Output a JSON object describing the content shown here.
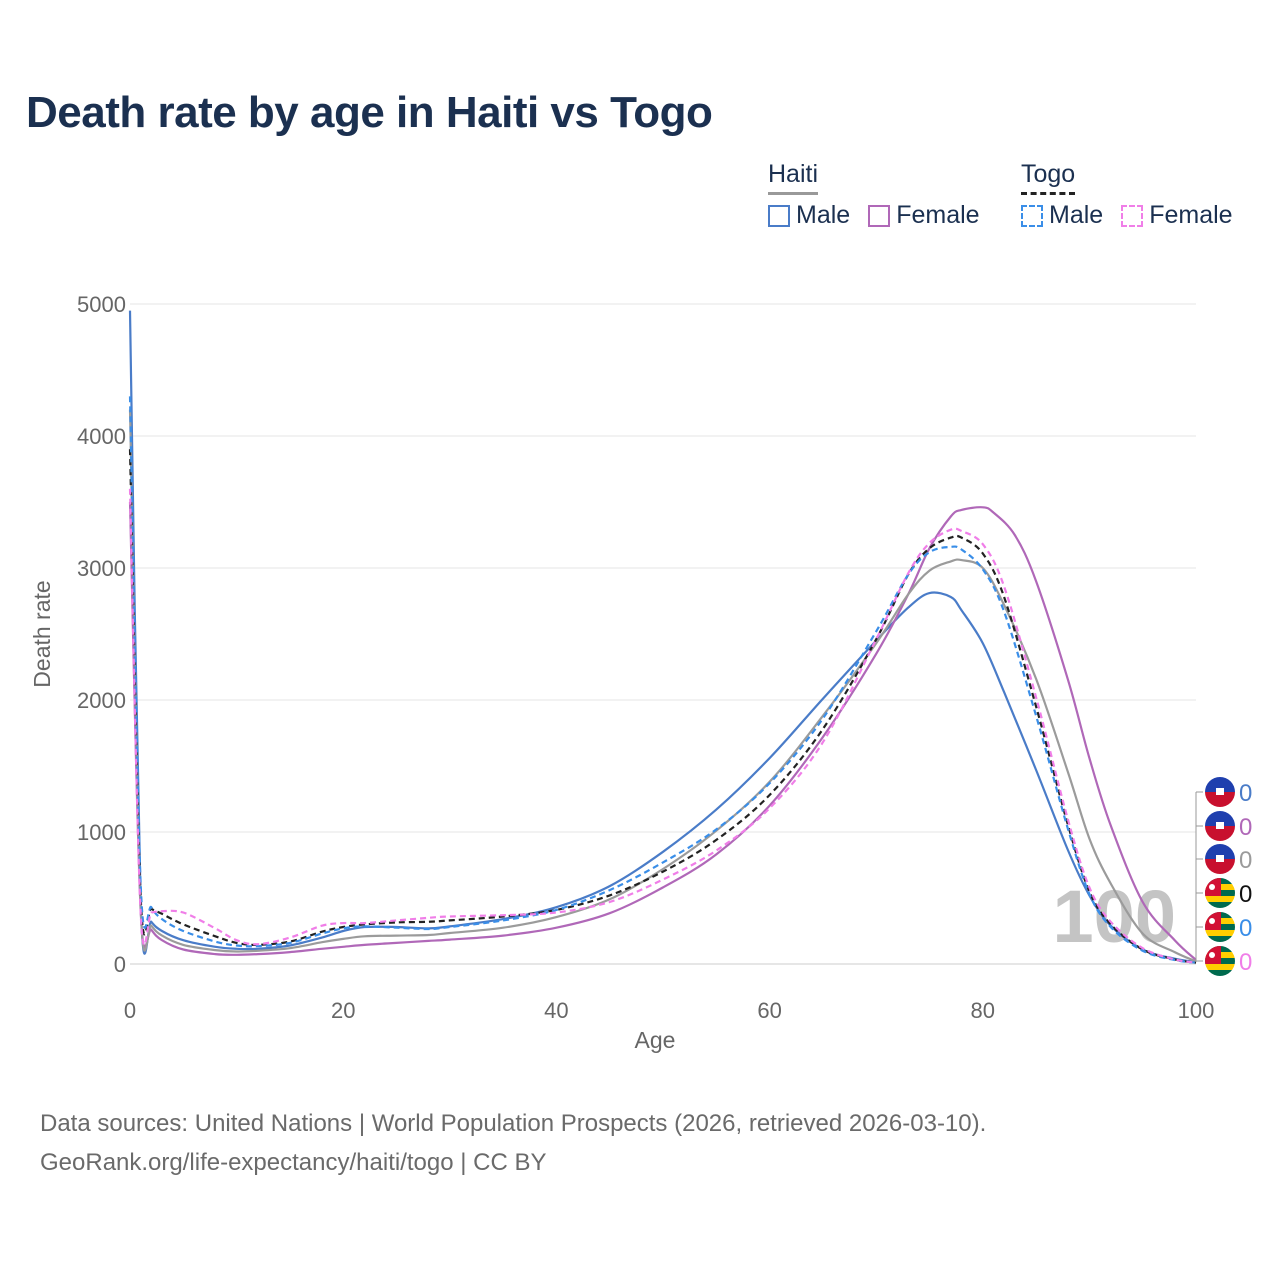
{
  "title": "Death rate by age in Haiti vs Togo",
  "legend": {
    "groups": [
      {
        "name": "Haiti",
        "items": [
          {
            "label": "Male",
            "color": "#4a7cc8",
            "dashed": false
          },
          {
            "label": "Female",
            "color": "#b068b8",
            "dashed": false
          }
        ]
      },
      {
        "name": "Togo",
        "items": [
          {
            "label": "Male",
            "color": "#3a8ee8",
            "dashed": true
          },
          {
            "label": "Female",
            "color": "#f07ee8",
            "dashed": true
          }
        ]
      }
    ]
  },
  "chart_data": {
    "type": "line",
    "xlabel": "Age",
    "ylabel": "Death rate",
    "xlim": [
      0,
      100
    ],
    "ylim": [
      0,
      5000
    ],
    "xticks": [
      0,
      20,
      40,
      60,
      80,
      100
    ],
    "yticks": [
      0,
      1000,
      2000,
      3000,
      4000,
      5000
    ],
    "grid": true,
    "watermark_value": "100",
    "series": [
      {
        "name": "Haiti Male",
        "country": "Haiti",
        "color": "#4a7cc8",
        "dash": false,
        "end_value": "0",
        "x": [
          0,
          1,
          2,
          3,
          5,
          8,
          10,
          12,
          15,
          18,
          20,
          22,
          25,
          28,
          30,
          35,
          40,
          45,
          50,
          55,
          60,
          65,
          70,
          73,
          75,
          77,
          78,
          80,
          82,
          85,
          88,
          90,
          92,
          95,
          98,
          100
        ],
        "y": [
          4950,
          450,
          320,
          250,
          180,
          130,
          115,
          115,
          140,
          200,
          250,
          280,
          280,
          270,
          285,
          340,
          430,
          590,
          850,
          1170,
          1560,
          2010,
          2450,
          2700,
          2810,
          2780,
          2680,
          2430,
          2060,
          1470,
          860,
          520,
          290,
          110,
          40,
          15
        ]
      },
      {
        "name": "Haiti Female",
        "country": "Haiti",
        "color": "#b068b8",
        "dash": false,
        "end_value": "0",
        "x": [
          0,
          1,
          2,
          3,
          5,
          8,
          10,
          12,
          15,
          18,
          20,
          22,
          25,
          28,
          30,
          35,
          40,
          45,
          50,
          55,
          60,
          65,
          70,
          73,
          75,
          77,
          78,
          80,
          81,
          83,
          85,
          88,
          90,
          92,
          95,
          98,
          100
        ],
        "y": [
          3500,
          400,
          260,
          180,
          110,
          75,
          70,
          75,
          90,
          115,
          130,
          145,
          160,
          175,
          185,
          215,
          275,
          385,
          580,
          830,
          1200,
          1720,
          2350,
          2800,
          3150,
          3390,
          3440,
          3460,
          3420,
          3250,
          2900,
          2150,
          1560,
          1050,
          470,
          180,
          30
        ]
      },
      {
        "name": "Haiti (both)",
        "country": "Haiti",
        "color": "#9b9b9b",
        "dash": false,
        "end_value": "0",
        "x": [
          0,
          1,
          2,
          3,
          5,
          8,
          10,
          12,
          15,
          18,
          20,
          22,
          25,
          28,
          30,
          35,
          40,
          45,
          50,
          55,
          60,
          65,
          70,
          73,
          75,
          77,
          78,
          80,
          82,
          85,
          88,
          90,
          92,
          95,
          98,
          100
        ],
        "y": [
          4200,
          420,
          290,
          215,
          145,
          105,
          95,
          100,
          120,
          165,
          190,
          210,
          215,
          220,
          235,
          275,
          355,
          490,
          720,
          1010,
          1380,
          1880,
          2430,
          2800,
          2980,
          3050,
          3060,
          3000,
          2720,
          2160,
          1450,
          950,
          610,
          230,
          90,
          20
        ]
      },
      {
        "name": "Togo (both)",
        "country": "Togo",
        "color": "#222222",
        "dash": true,
        "end_value": "0",
        "x": [
          0,
          1,
          2,
          3,
          5,
          8,
          10,
          12,
          15,
          18,
          20,
          22,
          25,
          28,
          30,
          35,
          40,
          45,
          50,
          55,
          60,
          65,
          70,
          73,
          75,
          77,
          78,
          80,
          82,
          85,
          88,
          90,
          92,
          95,
          98,
          100
        ],
        "y": [
          3900,
          500,
          420,
          380,
          300,
          210,
          160,
          145,
          170,
          245,
          280,
          300,
          315,
          320,
          330,
          360,
          410,
          520,
          700,
          940,
          1280,
          1780,
          2460,
          2950,
          3150,
          3230,
          3230,
          3110,
          2780,
          1950,
          1050,
          550,
          300,
          110,
          35,
          10
        ]
      },
      {
        "name": "Togo Male",
        "country": "Togo",
        "color": "#3a8ee8",
        "dash": true,
        "end_value": "0",
        "x": [
          0,
          1,
          2,
          3,
          5,
          8,
          10,
          12,
          15,
          18,
          20,
          22,
          25,
          28,
          30,
          35,
          40,
          45,
          50,
          55,
          60,
          65,
          70,
          73,
          75,
          77,
          78,
          80,
          82,
          85,
          88,
          90,
          92,
          95,
          98,
          100
        ],
        "y": [
          4300,
          600,
          430,
          340,
          250,
          170,
          140,
          135,
          160,
          230,
          270,
          285,
          275,
          265,
          280,
          330,
          410,
          560,
          770,
          1020,
          1370,
          1860,
          2520,
          2950,
          3120,
          3160,
          3140,
          2990,
          2670,
          1880,
          1020,
          530,
          280,
          100,
          30,
          10
        ]
      },
      {
        "name": "Togo Female",
        "country": "Togo",
        "color": "#f07ee8",
        "dash": true,
        "end_value": "0",
        "x": [
          0,
          1,
          2,
          3,
          5,
          8,
          10,
          12,
          15,
          18,
          20,
          22,
          25,
          28,
          30,
          35,
          40,
          45,
          50,
          55,
          60,
          65,
          70,
          73,
          75,
          77,
          78,
          80,
          82,
          85,
          88,
          90,
          92,
          95,
          98,
          100
        ],
        "y": [
          3600,
          380,
          390,
          400,
          390,
          270,
          180,
          150,
          200,
          290,
          310,
          310,
          330,
          350,
          360,
          370,
          390,
          470,
          640,
          860,
          1180,
          1680,
          2460,
          2960,
          3190,
          3290,
          3280,
          3180,
          2860,
          2020,
          1090,
          580,
          320,
          120,
          35,
          10
        ]
      }
    ]
  },
  "footer": {
    "line1": "Data sources: United Nations | World Population Prospects (2026, retrieved 2026-03-10).",
    "line2": "GeoRank.org/life-expectancy/haiti/togo | CC BY"
  }
}
